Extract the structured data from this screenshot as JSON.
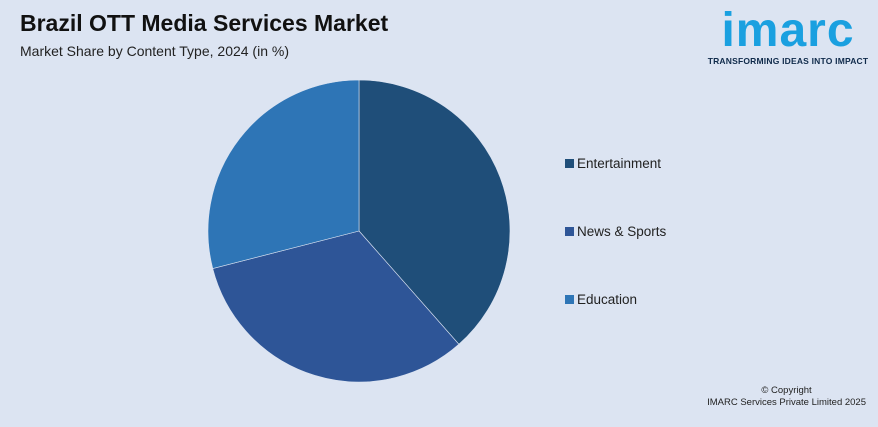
{
  "header": {
    "title": "Brazil OTT Media Services Market",
    "subtitle": "Market Share by Content Type, 2024 (in %)"
  },
  "logo": {
    "wordmark": "imarc",
    "tagline": "TRANSFORMING IDEAS INTO IMPACT"
  },
  "chart_data": {
    "type": "pie",
    "title": "Brazil OTT Media Services Market",
    "subtitle": "Market Share by Content Type, 2024 (in %)",
    "categories": [
      "Entertainment",
      "News & Sports",
      "Education"
    ],
    "values": [
      38.5,
      32.5,
      29.0
    ],
    "colors": [
      "#1f4e79",
      "#2e5597",
      "#2e75b6"
    ],
    "start_angle_deg": 0,
    "direction": "clockwise",
    "legend_placement": "right"
  },
  "legend": {
    "items": [
      {
        "label": "Entertainment",
        "color": "#1f4e79"
      },
      {
        "label": "News & Sports",
        "color": "#2e5597"
      },
      {
        "label": "Education",
        "color": "#2e75b6"
      }
    ]
  },
  "footer": {
    "copyright_line1": "© Copyright",
    "copyright_line2": "IMARC Services Private Limited 2025"
  }
}
